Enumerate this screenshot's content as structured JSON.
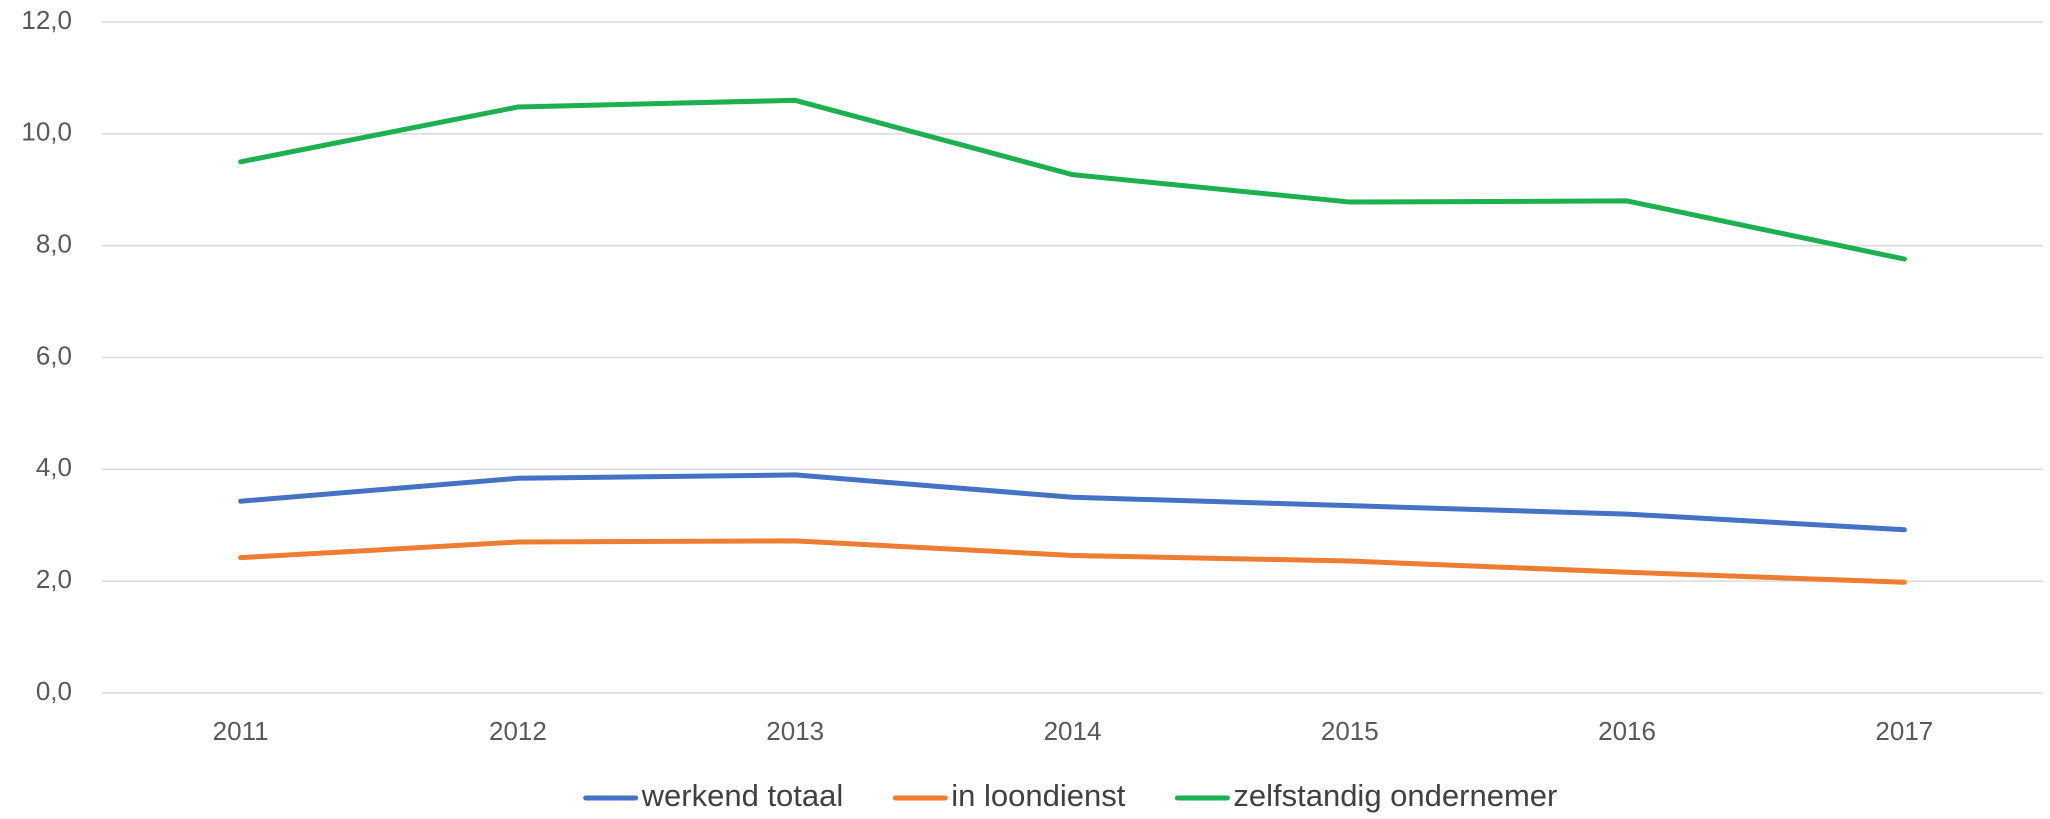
{
  "chart_data": {
    "type": "line",
    "categories": [
      "2011",
      "2012",
      "2013",
      "2014",
      "2015",
      "2016",
      "2017"
    ],
    "series": [
      {
        "name": "werkend totaal",
        "color": "#4472c4",
        "values": [
          3.43,
          3.84,
          3.9,
          3.5,
          3.35,
          3.2,
          2.92
        ]
      },
      {
        "name": "in loondienst",
        "color": "#ed7d31",
        "values": [
          2.42,
          2.7,
          2.72,
          2.46,
          2.36,
          2.16,
          1.98
        ]
      },
      {
        "name": "zelfstandig ondernemer",
        "color": "#1db04f",
        "values": [
          9.5,
          10.48,
          10.6,
          9.27,
          8.78,
          8.8,
          7.76
        ]
      }
    ],
    "ylim": [
      0,
      12
    ],
    "yticks": [
      {
        "value": 0,
        "label": "0,0"
      },
      {
        "value": 2,
        "label": "2,0"
      },
      {
        "value": 4,
        "label": "4,0"
      },
      {
        "value": 6,
        "label": "6,0"
      },
      {
        "value": 8,
        "label": "8,0"
      },
      {
        "value": 10,
        "label": "10,0"
      },
      {
        "value": 12,
        "label": "12,0"
      }
    ],
    "grid": true,
    "legend": "bottom"
  }
}
